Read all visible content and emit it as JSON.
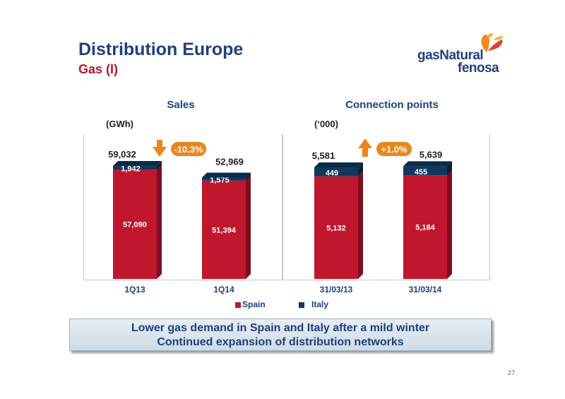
{
  "header": {
    "title": "Distribution Europe",
    "subtitle": "Gas (I)"
  },
  "logo": {
    "line1": "gasNatural",
    "line2": "fenosa"
  },
  "colors": {
    "spain": "#c0172f",
    "italy": "#12375e",
    "title_blue": "#1f3f7f",
    "subtitle_red": "#b0192f",
    "callout_orange": "#e8871e"
  },
  "legend": {
    "spain": "Spain",
    "italy": "Italy"
  },
  "footer": {
    "message_line1": "Lower gas demand in Spain and Italy after a mild winter",
    "message_line2": "Continued expansion of distribution networks",
    "page_number": "27"
  },
  "chart_data": [
    {
      "type": "bar",
      "stacked": true,
      "title": "Sales",
      "unit": "(GWh)",
      "categories": [
        "1Q13",
        "1Q14"
      ],
      "series": [
        {
          "name": "Spain",
          "values": [
            57090,
            51394
          ],
          "labels": [
            "57,090",
            "51,394"
          ]
        },
        {
          "name": "Italy",
          "values": [
            1942,
            1575
          ],
          "labels": [
            "1,942",
            "1,575"
          ]
        }
      ],
      "totals": [
        59032,
        52969
      ],
      "total_labels": [
        "59,032",
        "52,969"
      ],
      "change": {
        "label": "-10.3%",
        "direction": "down"
      },
      "ylim": [
        0,
        62000
      ]
    },
    {
      "type": "bar",
      "stacked": true,
      "title": "Connection points",
      "unit": "(‘000)",
      "categories": [
        "31/03/13",
        "31/03/14"
      ],
      "series": [
        {
          "name": "Spain",
          "values": [
            5132,
            5184
          ],
          "labels": [
            "5,132",
            "5,184"
          ]
        },
        {
          "name": "Italy",
          "values": [
            449,
            455
          ],
          "labels": [
            "449",
            "455"
          ]
        }
      ],
      "totals": [
        5581,
        5639
      ],
      "total_labels": [
        "5,581",
        "5,639"
      ],
      "change": {
        "label": "+1.0%",
        "direction": "up"
      },
      "ylim": [
        0,
        5900
      ]
    }
  ]
}
